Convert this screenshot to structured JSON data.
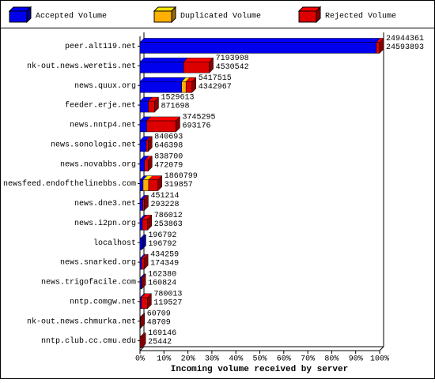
{
  "chart_data": {
    "type": "bar",
    "orientation": "horizontal",
    "stacked": true,
    "x_label": "Incoming volume received by server",
    "categories": [
      "peer.alt119.net",
      "nk-out.news.weretis.net",
      "news.quux.org",
      "feeder.erje.net",
      "news.nntp4.net",
      "news.sonologic.net",
      "news.novabbs.org",
      "newsfeed.endofthelinebbs.com",
      "news.dne3.net",
      "news.i2pn.org",
      "localhost",
      "news.snarked.org",
      "news.trigofacile.com",
      "nntp.comgw.net",
      "nk-out.news.chmurka.net",
      "nntp.club.cc.cmu.edu"
    ],
    "total_volume": [
      24944361,
      7193908,
      5417515,
      1529613,
      3745295,
      840693,
      838700,
      1860799,
      451214,
      786012,
      196792,
      434259,
      162380,
      780013,
      60709,
      169146
    ],
    "accepted_volume": [
      24593893,
      4530542,
      4342967,
      871698,
      693176,
      646398,
      472079,
      319857,
      293228,
      253863,
      196792,
      174349,
      160824,
      119527,
      48709,
      25442
    ],
    "series": [
      {
        "name": "Accepted Volume",
        "color": "#0000ee",
        "values": [
          98.6,
          18.2,
          17.4,
          3.5,
          2.8,
          2.6,
          1.9,
          1.3,
          1.2,
          1.0,
          0.8,
          0.7,
          0.6,
          0.5,
          0.2,
          0.1
        ]
      },
      {
        "name": "Duplicated Volume",
        "color": "#ffb000",
        "values": [
          0,
          0,
          1.8,
          0,
          0,
          0,
          0,
          2.3,
          0,
          0,
          0,
          0,
          0,
          0,
          0,
          0
        ]
      },
      {
        "name": "Rejected Volume",
        "color": "#dd0000",
        "values": [
          1.4,
          10.7,
          2.5,
          2.6,
          12.2,
          0.8,
          1.5,
          3.9,
          0.6,
          2.2,
          0,
          1.0,
          0.1,
          2.6,
          0.04,
          0.6
        ]
      }
    ],
    "xlim": [
      0,
      100
    ],
    "xticks": [
      {
        "value": 0,
        "label": "0%"
      },
      {
        "value": 10,
        "label": "10%"
      },
      {
        "value": 20,
        "label": "20%"
      },
      {
        "value": 30,
        "label": "30%"
      },
      {
        "value": 40,
        "label": "40%"
      },
      {
        "value": 50,
        "label": "50%"
      },
      {
        "value": 60,
        "label": "60%"
      },
      {
        "value": 70,
        "label": "70%"
      },
      {
        "value": 80,
        "label": "80%"
      },
      {
        "value": 90,
        "label": "90%"
      },
      {
        "value": 100,
        "label": "100%"
      }
    ]
  }
}
